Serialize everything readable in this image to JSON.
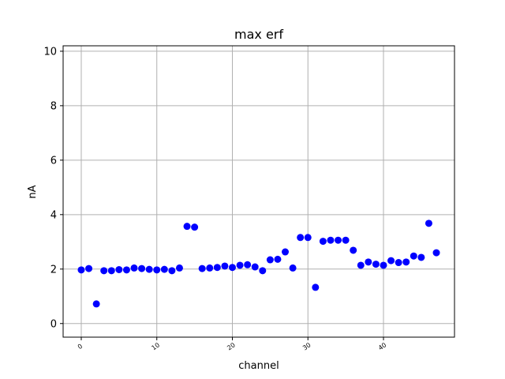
{
  "chart_data": {
    "type": "scatter",
    "title": "max erf",
    "xlabel": "channel",
    "ylabel": "nA",
    "xlim": [
      -2.4,
      49.4
    ],
    "ylim": [
      -0.5,
      10.2
    ],
    "xticks": [
      0,
      10,
      20,
      30,
      40
    ],
    "xtick_labels": [
      "0",
      "10",
      "20",
      "30",
      "40"
    ],
    "yticks": [
      0,
      2,
      4,
      6,
      8,
      10
    ],
    "ytick_labels": [
      "0",
      "2",
      "4",
      "6",
      "8",
      "10"
    ],
    "grid": true,
    "marker_color": "#0000ff",
    "x": [
      0,
      1,
      2,
      3,
      4,
      5,
      6,
      7,
      8,
      9,
      10,
      11,
      12,
      13,
      14,
      15,
      16,
      17,
      18,
      19,
      20,
      21,
      22,
      23,
      24,
      25,
      26,
      27,
      28,
      29,
      30,
      31,
      32,
      33,
      34,
      35,
      36,
      37,
      38,
      39,
      40,
      41,
      42,
      43,
      44,
      45,
      46,
      47
    ],
    "y": [
      1.97,
      2.02,
      0.72,
      1.94,
      1.94,
      1.98,
      1.97,
      2.04,
      2.02,
      1.99,
      1.97,
      1.99,
      1.94,
      2.04,
      3.57,
      3.54,
      2.02,
      2.04,
      2.06,
      2.11,
      2.06,
      2.14,
      2.16,
      2.08,
      1.94,
      2.34,
      2.36,
      2.63,
      2.04,
      3.16,
      3.16,
      1.33,
      3.02,
      3.06,
      3.06,
      3.06,
      2.69,
      2.14,
      2.26,
      2.18,
      2.14,
      2.31,
      2.24,
      2.26,
      2.48,
      2.43,
      3.68,
      2.6
    ]
  }
}
